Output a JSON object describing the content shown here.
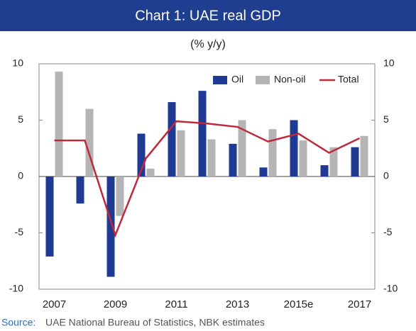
{
  "chart_data": {
    "type": "bar_line",
    "title": "Chart 1: UAE real GDP",
    "subtitle": "(% y/y)",
    "categories": [
      "2007",
      null,
      "2009",
      null,
      "2011",
      null,
      "2013",
      null,
      "2015e",
      null,
      "2017"
    ],
    "series": [
      {
        "name": "Oil",
        "type": "bar",
        "color": "#1f3a93",
        "values": [
          -7.1,
          -2.4,
          -8.9,
          3.8,
          6.6,
          7.6,
          2.9,
          0.8,
          5.0,
          1.0,
          2.6
        ]
      },
      {
        "name": "Non-oil",
        "type": "bar",
        "color": "#b5b5b5",
        "values": [
          9.3,
          6.0,
          -3.5,
          0.7,
          4.1,
          3.3,
          5.0,
          4.2,
          3.2,
          2.6,
          3.6
        ]
      },
      {
        "name": "Total",
        "type": "line",
        "color": "#c0283c",
        "values": [
          3.2,
          3.2,
          -5.2,
          1.6,
          4.9,
          4.7,
          4.4,
          3.1,
          3.8,
          2.1,
          3.4
        ]
      }
    ],
    "ylim": [
      -10,
      10
    ],
    "yticks": [
      -10,
      -5,
      0,
      5,
      10
    ],
    "y2lim": [
      -10,
      10
    ],
    "y2ticks": [
      -10,
      -5,
      0,
      5,
      10
    ],
    "legend": "top-right",
    "source_label": "Source:",
    "source_text": "UAE National Bureau of Statistics, NBK estimates"
  }
}
